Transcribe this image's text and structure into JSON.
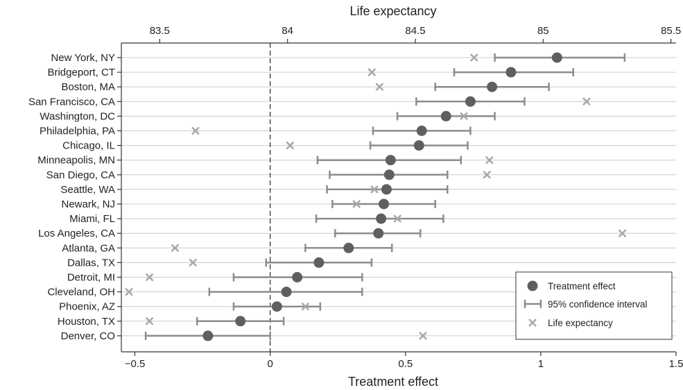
{
  "chart_data": {
    "type": "dot-and-whisker",
    "xlabel": "Treatment effect",
    "x2label": "Life expectancy",
    "xlim": [
      -0.55,
      1.5
    ],
    "x2lim": [
      83.35,
      85.52
    ],
    "xticks": [
      -0.5,
      0,
      0.5,
      1,
      1.5
    ],
    "xtick_labels": [
      "−0.5",
      "0",
      "0.5",
      "1",
      "1.5"
    ],
    "x2ticks": [
      83.5,
      84,
      84.5,
      85,
      85.5
    ],
    "x2tick_labels": [
      "83.5",
      "84",
      "84.5",
      "85",
      "85.5"
    ],
    "reference_line_x": 0,
    "grid": "horizontal",
    "legend_position": "bottom-right",
    "colors": {
      "effect": "#5f5f5f",
      "ci": "#8c8c8c",
      "life": "#a8a8a8",
      "grid": "#cccccc"
    },
    "legend": {
      "effect": "Treatment effect",
      "ci": "95% confidence interval",
      "life": "Life expectancy"
    },
    "rows": [
      {
        "city": "New York, NY",
        "effect": 1.06,
        "ci_low": 0.83,
        "ci_high": 1.31,
        "life_expectancy": 84.73
      },
      {
        "city": "Bridgeport, CT",
        "effect": 0.89,
        "ci_low": 0.68,
        "ci_high": 1.12,
        "life_expectancy": 84.33
      },
      {
        "city": "Boston, MA",
        "effect": 0.82,
        "ci_low": 0.61,
        "ci_high": 1.03,
        "life_expectancy": 84.36
      },
      {
        "city": "San Francisco, CA",
        "effect": 0.74,
        "ci_low": 0.54,
        "ci_high": 0.94,
        "life_expectancy": 85.17
      },
      {
        "city": "Washington, DC",
        "effect": 0.65,
        "ci_low": 0.47,
        "ci_high": 0.83,
        "life_expectancy": 84.69
      },
      {
        "city": "Philadelphia, PA",
        "effect": 0.56,
        "ci_low": 0.38,
        "ci_high": 0.74,
        "life_expectancy": 83.64
      },
      {
        "city": "Chicago, IL",
        "effect": 0.55,
        "ci_low": 0.37,
        "ci_high": 0.73,
        "life_expectancy": 84.01
      },
      {
        "city": "Minneapolis, MN",
        "effect": 0.445,
        "ci_low": 0.175,
        "ci_high": 0.705,
        "life_expectancy": 84.79
      },
      {
        "city": "San Diego, CA",
        "effect": 0.44,
        "ci_low": 0.22,
        "ci_high": 0.655,
        "life_expectancy": 84.78
      },
      {
        "city": "Seattle, WA",
        "effect": 0.43,
        "ci_low": 0.21,
        "ci_high": 0.655,
        "life_expectancy": 84.34
      },
      {
        "city": "Newark, NJ",
        "effect": 0.42,
        "ci_low": 0.23,
        "ci_high": 0.61,
        "life_expectancy": 84.27
      },
      {
        "city": "Miami, FL",
        "effect": 0.41,
        "ci_low": 0.17,
        "ci_high": 0.64,
        "life_expectancy": 84.43
      },
      {
        "city": "Los Angeles, CA",
        "effect": 0.4,
        "ci_low": 0.24,
        "ci_high": 0.555,
        "life_expectancy": 85.31
      },
      {
        "city": "Atlanta, GA",
        "effect": 0.29,
        "ci_low": 0.13,
        "ci_high": 0.45,
        "life_expectancy": 83.56
      },
      {
        "city": "Dallas, TX",
        "effect": 0.18,
        "ci_low": -0.015,
        "ci_high": 0.375,
        "life_expectancy": 83.63
      },
      {
        "city": "Detroit, MI",
        "effect": 0.1,
        "ci_low": -0.135,
        "ci_high": 0.34,
        "life_expectancy": 83.46
      },
      {
        "city": "Cleveland, OH",
        "effect": 0.06,
        "ci_low": -0.225,
        "ci_high": 0.34,
        "life_expectancy": 83.38
      },
      {
        "city": "Phoenix, AZ",
        "effect": 0.025,
        "ci_low": -0.135,
        "ci_high": 0.185,
        "life_expectancy": 84.07
      },
      {
        "city": "Houston, TX",
        "effect": -0.11,
        "ci_low": -0.27,
        "ci_high": 0.05,
        "life_expectancy": 83.46
      },
      {
        "city": "Denver, CO",
        "effect": -0.23,
        "ci_low": -0.46,
        "ci_high": 0.0,
        "life_expectancy": 84.53
      }
    ]
  }
}
